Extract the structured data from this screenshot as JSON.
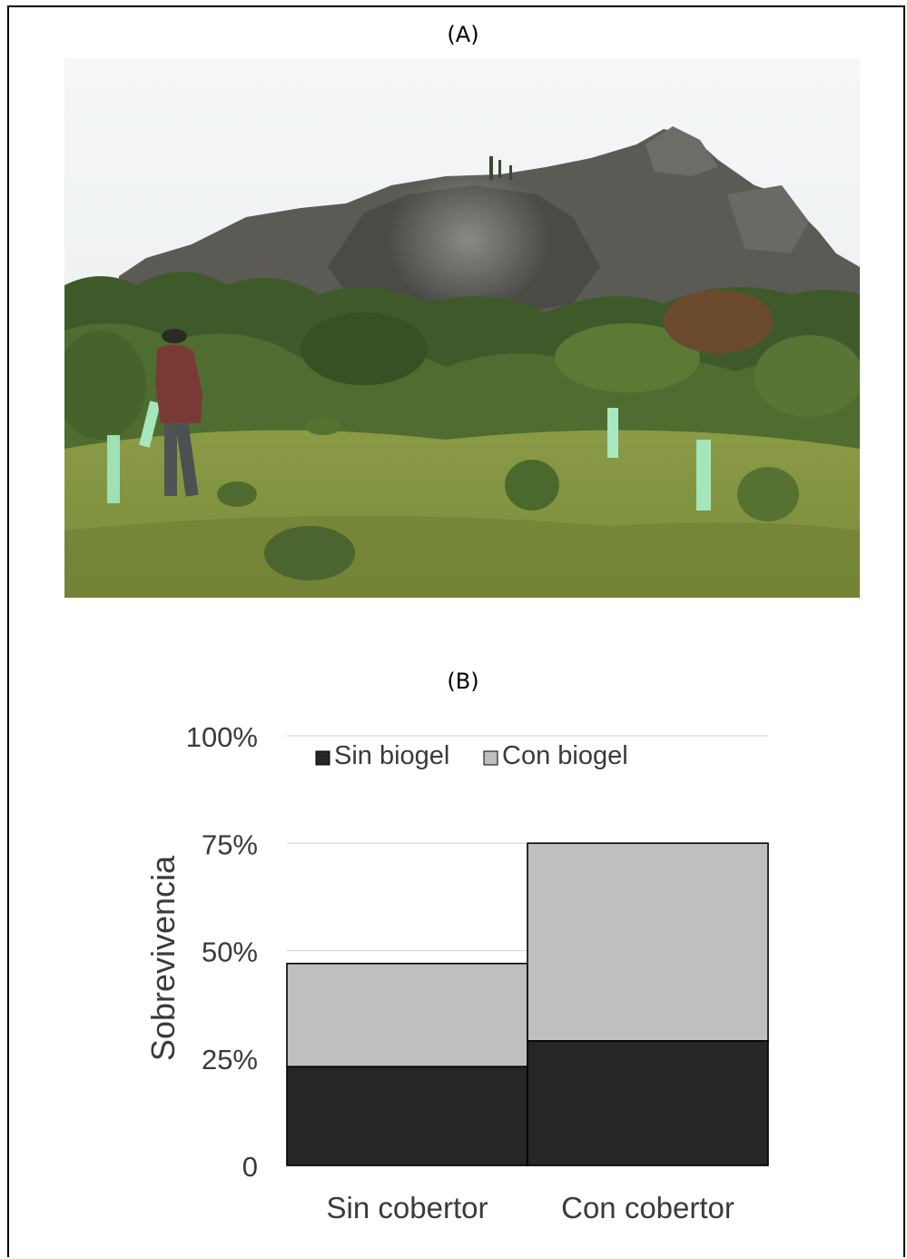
{
  "panels": {
    "a_label": "(A)",
    "b_label": "(B)"
  },
  "photo": {
    "subject": "field plot with shrubs, rocky hill, a person and green tree-shelter tubes"
  },
  "colors": {
    "sin_biogel": "#262626",
    "con_biogel": "#bfbfbf",
    "gridline": "#d9d9d9"
  },
  "chart_data": {
    "type": "bar",
    "stacked": true,
    "categories": [
      "Sin cobertor",
      "Con cobertor"
    ],
    "series": [
      {
        "name": "Sin biogel",
        "values": [
          23,
          29
        ],
        "color": "#262626"
      },
      {
        "name": "Con biogel",
        "values": [
          24,
          46
        ],
        "color": "#bfbfbf"
      }
    ],
    "ylabel": "Sobrevivencia",
    "xlabel": "",
    "ylim": [
      0,
      100
    ],
    "yticks": [
      0,
      25,
      50,
      75,
      100
    ],
    "ytick_labels": [
      "0",
      "25%",
      "50%",
      "75%",
      "100%"
    ],
    "grid": true,
    "legend_position": "top-left inside plot"
  }
}
